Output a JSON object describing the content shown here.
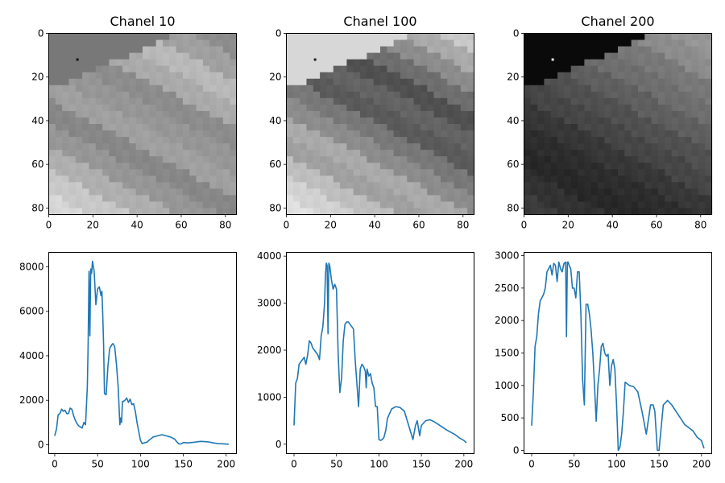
{
  "chart_data": [
    {
      "type": "heatmap",
      "title": "Chanel 10",
      "xlim": [
        0,
        85
      ],
      "ylim": [
        0,
        83
      ],
      "y_inverted": true,
      "xticks": [
        0,
        20,
        40,
        60,
        80
      ],
      "yticks": [
        0,
        20,
        40,
        60,
        80
      ],
      "colormap": "gray",
      "pattern": {
        "stripe_levels": [
          140,
          160,
          185,
          170,
          140,
          150,
          160,
          135,
          150,
          175,
          200,
          215
        ],
        "corner_value": 120,
        "speck_value": 20
      }
    },
    {
      "type": "heatmap",
      "title": "Chanel 100",
      "xlim": [
        0,
        85
      ],
      "ylim": [
        0,
        83
      ],
      "y_inverted": true,
      "xticks": [
        0,
        20,
        40,
        60,
        80
      ],
      "yticks": [
        0,
        20,
        40,
        60,
        80
      ],
      "colormap": "gray",
      "pattern": {
        "stripe_levels": [
          200,
          170,
          140,
          110,
          80,
          100,
          90,
          120,
          140,
          170,
          160,
          190,
          210,
          225
        ],
        "corner_value": 215,
        "speck_value": 30
      }
    },
    {
      "type": "heatmap",
      "title": "Chanel 200",
      "xlim": [
        0,
        85
      ],
      "ylim": [
        0,
        83
      ],
      "y_inverted": true,
      "xticks": [
        0,
        20,
        40,
        60,
        80
      ],
      "yticks": [
        0,
        20,
        40,
        60,
        80
      ],
      "colormap": "gray",
      "pattern": {
        "stripe_levels": [
          150,
          140,
          120,
          110,
          95,
          80,
          70,
          55,
          45,
          40,
          50,
          60
        ],
        "corner_value": 10,
        "speck_value": 240
      }
    },
    {
      "type": "line",
      "xlim": [
        -7,
        212
      ],
      "ylim": [
        -400,
        8650
      ],
      "xticks": [
        0,
        50,
        100,
        150,
        200
      ],
      "yticks": [
        0,
        2000,
        4000,
        6000,
        8000
      ],
      "series": [
        {
          "color": "#1f77b4",
          "x": [
            0,
            2,
            4,
            6,
            8,
            10,
            12,
            14,
            16,
            18,
            20,
            22,
            24,
            26,
            28,
            30,
            32,
            34,
            36,
            38,
            39,
            40,
            41,
            42,
            43,
            44,
            46,
            48,
            50,
            52,
            54,
            55,
            56,
            57,
            58,
            60,
            62,
            64,
            65,
            66,
            67,
            68,
            70,
            72,
            74,
            76,
            77,
            78,
            79,
            80,
            82,
            84,
            86,
            88,
            90,
            92,
            94,
            96,
            98,
            100,
            102,
            104,
            106,
            108,
            110,
            115,
            120,
            125,
            130,
            135,
            140,
            142,
            145,
            148,
            150,
            155,
            160,
            165,
            170,
            175,
            180,
            185,
            190,
            195,
            200,
            203
          ],
          "y": [
            400,
            700,
            1350,
            1400,
            1600,
            1500,
            1550,
            1400,
            1400,
            1650,
            1600,
            1300,
            1100,
            950,
            850,
            800,
            750,
            1000,
            900,
            2600,
            4500,
            7800,
            4900,
            7900,
            7700,
            8250,
            7800,
            6300,
            7000,
            7100,
            6700,
            6900,
            5900,
            4500,
            2300,
            2250,
            3500,
            4300,
            4400,
            4450,
            4520,
            4550,
            4400,
            3600,
            2600,
            900,
            1200,
            1000,
            1950,
            1950,
            2000,
            2100,
            1900,
            2050,
            1800,
            1850,
            1500,
            1000,
            600,
            200,
            50,
            80,
            100,
            120,
            200,
            350,
            400,
            450,
            400,
            350,
            250,
            150,
            30,
            40,
            100,
            80,
            100,
            120,
            150,
            140,
            120,
            80,
            50,
            40,
            30,
            20
          ]
        }
      ]
    },
    {
      "type": "line",
      "xlim": [
        -9,
        212
      ],
      "ylim": [
        -200,
        4080
      ],
      "xticks": [
        0,
        50,
        100,
        150,
        200
      ],
      "yticks": [
        0,
        1000,
        2000,
        3000,
        4000
      ],
      "series": [
        {
          "color": "#1f77b4",
          "x": [
            0,
            2,
            4,
            6,
            8,
            10,
            12,
            14,
            16,
            18,
            20,
            22,
            24,
            26,
            28,
            30,
            32,
            34,
            36,
            37,
            38,
            39,
            40,
            41,
            42,
            44,
            46,
            48,
            50,
            52,
            54,
            56,
            58,
            60,
            62,
            64,
            66,
            68,
            70,
            72,
            74,
            76,
            78,
            80,
            82,
            84,
            85,
            86,
            88,
            90,
            92,
            94,
            96,
            98,
            100,
            102,
            104,
            106,
            108,
            110,
            115,
            120,
            125,
            130,
            135,
            140,
            143,
            145,
            148,
            150,
            155,
            160,
            165,
            170,
            175,
            180,
            185,
            190,
            195,
            200,
            203
          ],
          "y": [
            400,
            1300,
            1400,
            1700,
            1750,
            1800,
            1850,
            1700,
            1900,
            2200,
            2150,
            2050,
            2000,
            1950,
            1900,
            1800,
            2300,
            2500,
            3000,
            3600,
            3850,
            3800,
            2350,
            3850,
            3800,
            3500,
            3300,
            3400,
            3300,
            1900,
            1100,
            1400,
            2200,
            2550,
            2600,
            2600,
            2550,
            2500,
            2450,
            1800,
            1300,
            800,
            1600,
            1700,
            1650,
            1550,
            1200,
            1600,
            1450,
            1500,
            1300,
            1200,
            800,
            800,
            100,
            80,
            100,
            150,
            300,
            550,
            750,
            800,
            780,
            700,
            400,
            100,
            400,
            500,
            180,
            400,
            500,
            520,
            480,
            420,
            360,
            300,
            250,
            200,
            130,
            80,
            30
          ]
        }
      ]
    },
    {
      "type": "line",
      "xlim": [
        -9,
        212
      ],
      "ylim": [
        -50,
        3050
      ],
      "xticks": [
        0,
        50,
        100,
        150,
        200
      ],
      "yticks": [
        0,
        500,
        1000,
        1500,
        2000,
        2500,
        3000
      ],
      "series": [
        {
          "color": "#1f77b4",
          "x": [
            0,
            2,
            4,
            6,
            8,
            10,
            12,
            14,
            16,
            18,
            20,
            22,
            24,
            26,
            28,
            30,
            32,
            34,
            36,
            38,
            40,
            41,
            42,
            43,
            44,
            46,
            48,
            50,
            52,
            54,
            56,
            58,
            60,
            62,
            64,
            66,
            68,
            70,
            72,
            74,
            76,
            78,
            80,
            82,
            84,
            86,
            88,
            90,
            92,
            94,
            96,
            98,
            100,
            102,
            104,
            106,
            108,
            110,
            115,
            120,
            125,
            130,
            135,
            140,
            143,
            145,
            148,
            150,
            155,
            160,
            165,
            170,
            175,
            180,
            185,
            190,
            195,
            200,
            203
          ],
          "y": [
            380,
            900,
            1600,
            1750,
            2100,
            2300,
            2350,
            2400,
            2500,
            2750,
            2800,
            2850,
            2700,
            2880,
            2850,
            2600,
            2900,
            2800,
            2750,
            2880,
            2900,
            1750,
            2900,
            2900,
            2850,
            2800,
            2500,
            2500,
            2350,
            2750,
            2750,
            2100,
            1100,
            700,
            2250,
            2250,
            2100,
            1850,
            1500,
            1000,
            450,
            1000,
            1250,
            1600,
            1650,
            1500,
            1450,
            1480,
            1000,
            1300,
            1400,
            1250,
            700,
            0,
            50,
            250,
            600,
            1050,
            1000,
            980,
            900,
            600,
            250,
            700,
            700,
            600,
            0,
            0,
            700,
            770,
            700,
            600,
            500,
            400,
            350,
            300,
            200,
            150,
            30
          ]
        }
      ]
    }
  ]
}
